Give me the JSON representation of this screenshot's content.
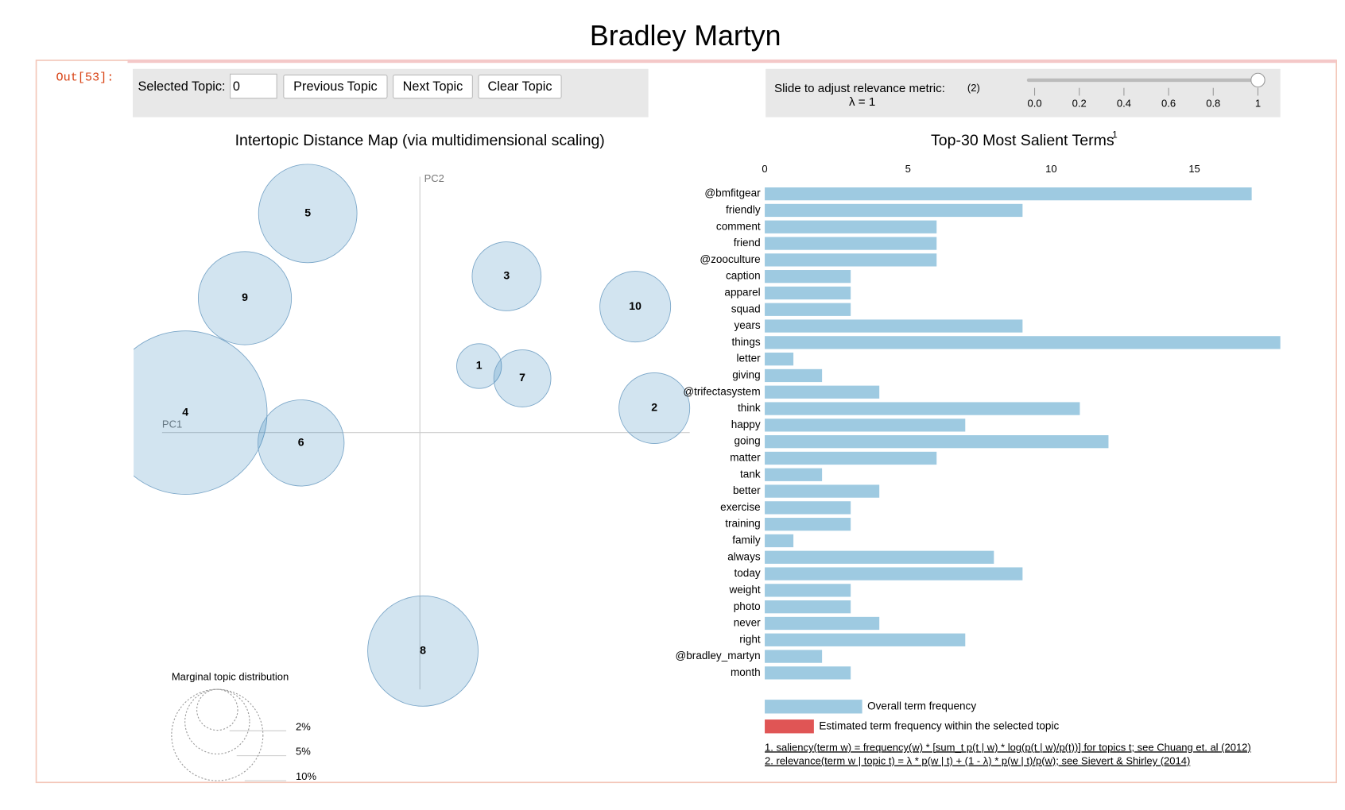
{
  "page_title": "Bradley Martyn",
  "cell_prompt": "Out[53]:",
  "controls": {
    "selected_topic_label": "Selected Topic:",
    "selected_topic_value": "0",
    "buttons": [
      "Previous Topic",
      "Next Topic",
      "Clear Topic"
    ],
    "slider_label": "Slide to adjust relevance metric:",
    "slider_note": "(2)",
    "lambda": {
      "value": 1,
      "label": "λ = 1"
    },
    "slider_lim": [
      0,
      1
    ],
    "slider_ticks": [
      {
        "value": 0,
        "label": "0.0"
      },
      0.2,
      0.4,
      0.6,
      0.8,
      1
    ]
  },
  "topic_map": {
    "title": "Intertopic Distance Map (via multidimensional scaling)",
    "x_label": "PC1",
    "y_label": "PC2",
    "xlim": [
      -0.51,
      0.48
    ],
    "ylim": [
      -0.49,
      0.47
    ],
    "color": "#1f77b4",
    "topics": [
      {
        "label": "1",
        "x": 0.105,
        "y": 0.117,
        "size": 2.4
      },
      {
        "label": "2",
        "x": 0.417,
        "y": 0.042,
        "size": 6
      },
      {
        "label": "3",
        "x": 0.154,
        "y": 0.277,
        "size": 5.7
      },
      {
        "label": "4",
        "x": -0.418,
        "y": 0.034,
        "size": 32
      },
      {
        "label": "5",
        "x": -0.2,
        "y": 0.389,
        "size": 11.6
      },
      {
        "label": "6",
        "x": -0.212,
        "y": -0.02,
        "size": 8.9
      },
      {
        "label": "7",
        "x": 0.182,
        "y": 0.095,
        "size": 3.9
      },
      {
        "label": "8",
        "x": 0.005,
        "y": -0.391,
        "size": 14.6
      },
      {
        "label": "9",
        "x": -0.312,
        "y": 0.238,
        "size": 10.4
      },
      {
        "label": "10",
        "x": 0.383,
        "y": 0.223,
        "size": 6
      }
    ],
    "size_legend_title": "Marginal topic distribution",
    "size_legend": [
      {
        "value": 2,
        "label": "2%"
      },
      {
        "value": 5,
        "label": "5%"
      },
      {
        "value": 10,
        "label": "10%"
      }
    ]
  },
  "salient_terms": {
    "type": "bar",
    "title": "Top-30 Most Salient Terms",
    "title_note": "1",
    "categories": [
      "@bmfitgear",
      "friendly",
      "comment",
      "friend",
      "@zooculture",
      "caption",
      "apparel",
      "squad",
      "years",
      "things",
      "letter",
      "giving",
      "@trifectasystem",
      "think",
      "happy",
      "going",
      "matter",
      "tank",
      "better",
      "exercise",
      "training",
      "family",
      "always",
      "today",
      "weight",
      "photo",
      "never",
      "right",
      "@bradley_martyn",
      "month"
    ],
    "values": [
      17,
      9,
      6,
      6,
      6,
      3,
      3,
      3,
      9,
      18,
      1,
      2,
      4,
      11,
      7,
      12,
      6,
      2,
      4,
      3,
      3,
      1,
      8,
      9,
      3,
      3,
      4,
      7,
      2,
      3
    ],
    "xlim": [
      0,
      18
    ],
    "xticks": [
      0,
      5,
      10,
      15
    ],
    "color": "#9ecae1",
    "legend": [
      {
        "name": "Overall term frequency",
        "color": "#9ecae1"
      },
      {
        "name": "Estimated term frequency within the selected topic",
        "color": "#e05555"
      }
    ],
    "footnotes": [
      "1. saliency(term w) = frequency(w) * [sum_t p(t | w) * log(p(t | w)/p(t))] for topics t; see Chuang et. al (2012)",
      "2. relevance(term w | topic t) = λ * p(w | t) + (1 - λ) * p(w | t)/p(w); see Sievert & Shirley (2014)"
    ]
  }
}
